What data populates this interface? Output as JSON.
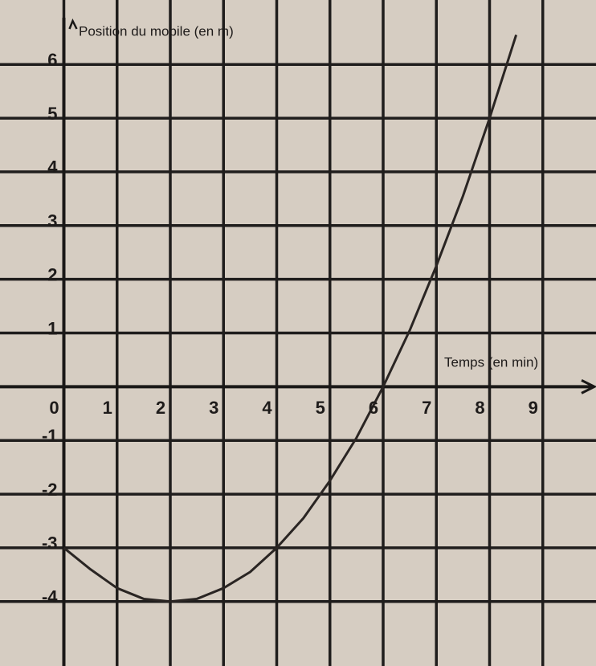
{
  "chart_data": {
    "type": "line",
    "x_label": "Temps (en min)",
    "y_label": "Position du mobile (en m)",
    "x": [
      0,
      0.5,
      1,
      1.5,
      2,
      2.5,
      3,
      3.5,
      4,
      4.5,
      5,
      5.5,
      6,
      6.5,
      7,
      7.5,
      8,
      8.5
    ],
    "series": [
      {
        "color": "#2a2523",
        "values": [
          -3,
          -3.4,
          -3.75,
          -3.95,
          -4,
          -3.95,
          -3.75,
          -3.45,
          -3,
          -2.45,
          -1.75,
          -0.95,
          0,
          1.05,
          2.25,
          3.55,
          5,
          6.55
        ]
      }
    ],
    "xlim": [
      -1.2,
      10
    ],
    "ylim": [
      -5.2,
      7.2
    ],
    "xticks": [
      0,
      1,
      2,
      3,
      4,
      5,
      6,
      7,
      8,
      9
    ],
    "yticks": [
      -4,
      -3,
      -2,
      -1,
      1,
      2,
      3,
      4,
      5,
      6
    ],
    "grid": true
  }
}
